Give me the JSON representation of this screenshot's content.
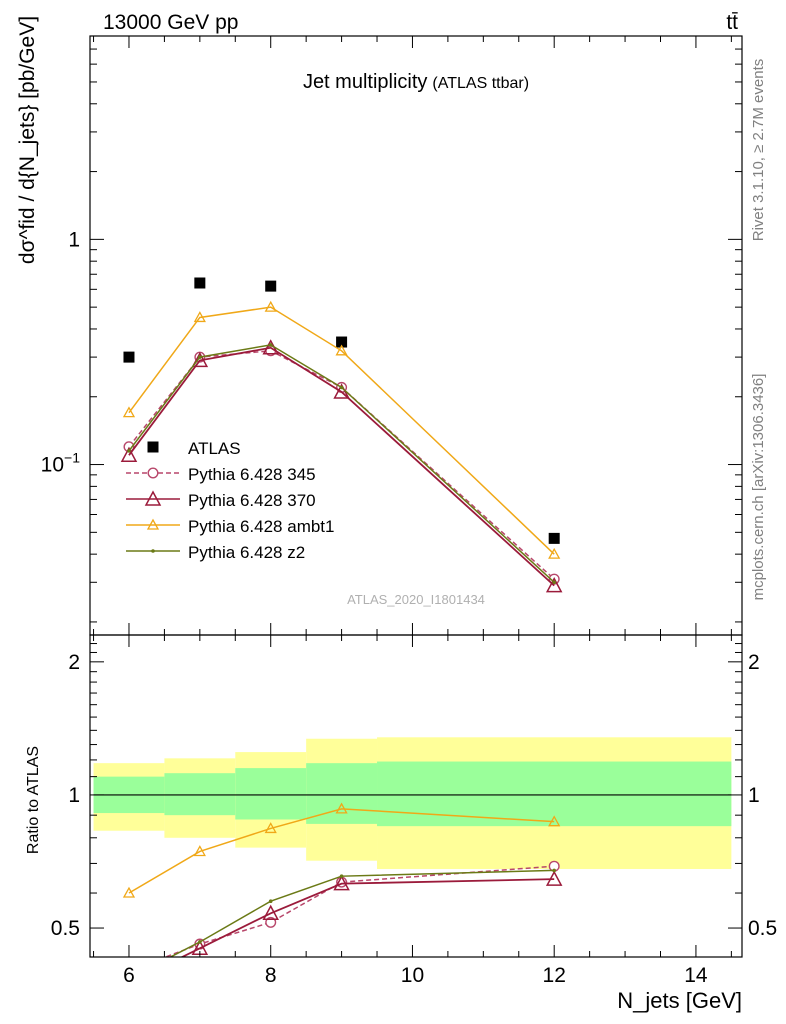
{
  "header": {
    "left": "13000 GeV pp",
    "right": "tt̄"
  },
  "side": {
    "rivet": "Rivet 3.1.10, ≥ 2.7M events",
    "mcplots": "mcplots.cern.ch [arXiv:1306.3436]"
  },
  "colors": {
    "data": "#000000",
    "p345": "#b8476b",
    "p370": "#9b1b3b",
    "ambt1": "#f0a818",
    "z2": "#6b7a16",
    "band_inner": "#9aff9a",
    "band_outer": "#ffff99"
  },
  "chart_data": [
    {
      "type": "line",
      "title": "Jet multiplicity",
      "subtitle": "(ATLAS ttbar)",
      "analysis": "ATLAS_2020_I1801434",
      "ylabel": "dσ^fid / d{N_jets} [pb/GeV]",
      "xlabel": "",
      "yscale": "log",
      "xlim": [
        5.45,
        14.65
      ],
      "ylim": [
        0.0175,
        8.0
      ],
      "yticks": [
        {
          "v": 1,
          "label": "1"
        },
        {
          "v": 0.1,
          "label": "10^-1"
        }
      ],
      "legend": "lower-left",
      "x": [
        6,
        7,
        8,
        9,
        12
      ],
      "series": [
        {
          "name": "ATLAS",
          "key": "data",
          "marker": "square",
          "values": [
            0.3,
            0.64,
            0.62,
            0.35,
            0.047
          ]
        },
        {
          "name": "Pythia 6.428 345",
          "key": "p345",
          "marker": "circle",
          "dash": true,
          "values": [
            0.12,
            0.3,
            0.32,
            0.22,
            0.031
          ]
        },
        {
          "name": "Pythia 6.428 370",
          "key": "p370",
          "marker": "triangle-big",
          "values": [
            0.11,
            0.29,
            0.33,
            0.21,
            0.029
          ]
        },
        {
          "name": "Pythia 6.428 ambt1",
          "key": "ambt1",
          "marker": "triangle",
          "values": [
            0.17,
            0.45,
            0.5,
            0.32,
            0.04
          ]
        },
        {
          "name": "Pythia 6.428 z2",
          "key": "z2",
          "marker": "dot",
          "values": [
            0.115,
            0.3,
            0.34,
            0.22,
            0.03
          ]
        }
      ]
    },
    {
      "type": "line",
      "ylabel": "Ratio to ATLAS",
      "xlabel": "N_jets [GeV]",
      "xlim": [
        5.45,
        14.65
      ],
      "ylim": [
        0.43,
        2.3
      ],
      "yscale": "log",
      "yticks": [
        {
          "v": 0.5,
          "label": "0.5"
        },
        {
          "v": 1,
          "label": "1"
        },
        {
          "v": 2,
          "label": "2"
        }
      ],
      "xticks": [
        6,
        8,
        10,
        12,
        14
      ],
      "bands": [
        {
          "x": [
            5.5,
            6.5
          ],
          "inner": [
            0.91,
            1.1
          ],
          "outer": [
            0.83,
            1.18
          ]
        },
        {
          "x": [
            6.5,
            7.5
          ],
          "inner": [
            0.9,
            1.12
          ],
          "outer": [
            0.8,
            1.21
          ]
        },
        {
          "x": [
            7.5,
            8.5
          ],
          "inner": [
            0.88,
            1.15
          ],
          "outer": [
            0.76,
            1.25
          ]
        },
        {
          "x": [
            8.5,
            9.5
          ],
          "inner": [
            0.86,
            1.18
          ],
          "outer": [
            0.71,
            1.34
          ]
        },
        {
          "x": [
            9.5,
            14.5
          ],
          "inner": [
            0.85,
            1.19
          ],
          "outer": [
            0.68,
            1.35
          ]
        }
      ],
      "x": [
        6,
        7,
        8,
        9,
        12
      ],
      "series": [
        {
          "name": "Pythia 6.428 345",
          "key": "p345",
          "marker": "circle",
          "dash": true,
          "values": [
            0.4,
            0.46,
            0.515,
            0.635,
            0.69
          ]
        },
        {
          "name": "Pythia 6.428 370",
          "key": "p370",
          "marker": "triangle-big",
          "values": [
            0.375,
            0.45,
            0.54,
            0.63,
            0.645
          ]
        },
        {
          "name": "Pythia 6.428 ambt1",
          "key": "ambt1",
          "marker": "triangle",
          "values": [
            0.6,
            0.745,
            0.84,
            0.93,
            0.87
          ]
        },
        {
          "name": "Pythia 6.428 z2",
          "key": "z2",
          "marker": "dot",
          "values": [
            0.385,
            0.465,
            0.575,
            0.655,
            0.675
          ]
        }
      ]
    }
  ]
}
